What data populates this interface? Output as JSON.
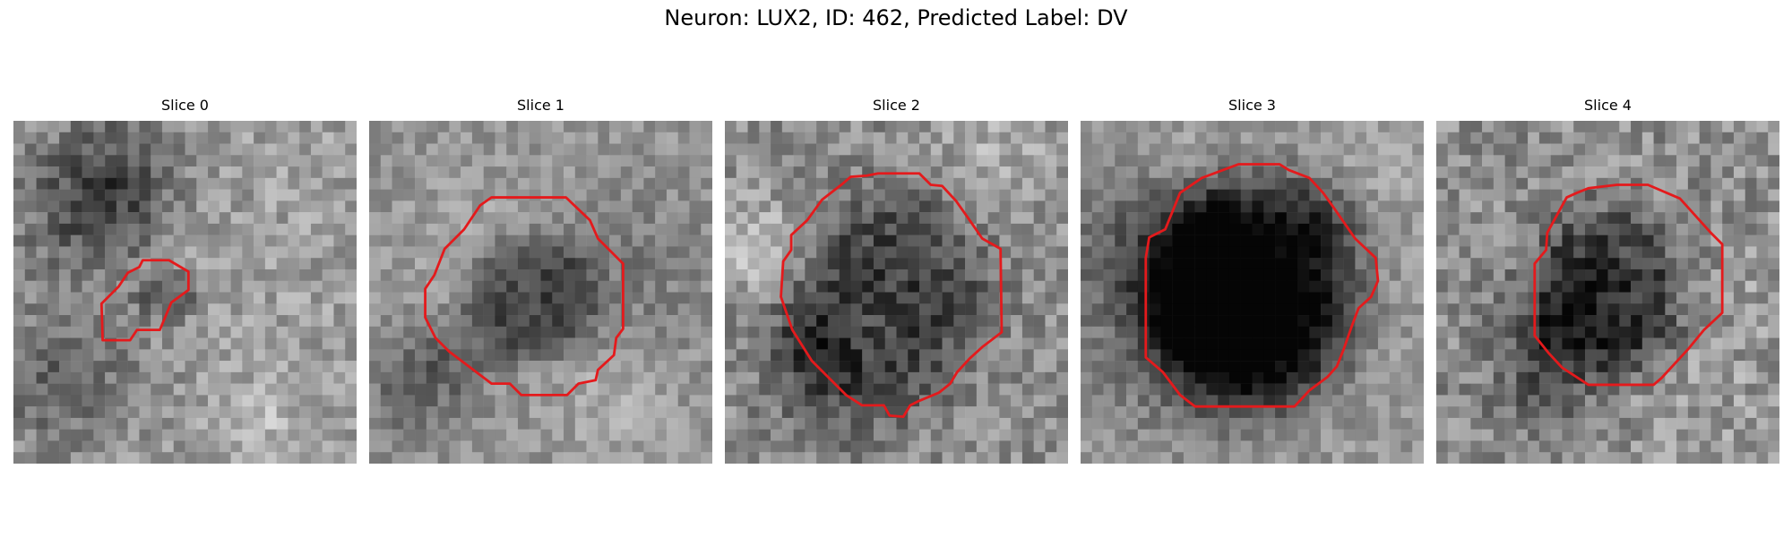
{
  "figure": {
    "title": "Neuron: LUX2, ID: 462, Predicted Label: DV"
  },
  "panels": [
    {
      "title": "Slice 0"
    },
    {
      "title": "Slice 1"
    },
    {
      "title": "Slice 2"
    },
    {
      "title": "Slice 3"
    },
    {
      "title": "Slice 4"
    }
  ],
  "colors": {
    "contour": "#e41a1c",
    "background": "#ffffff"
  }
}
